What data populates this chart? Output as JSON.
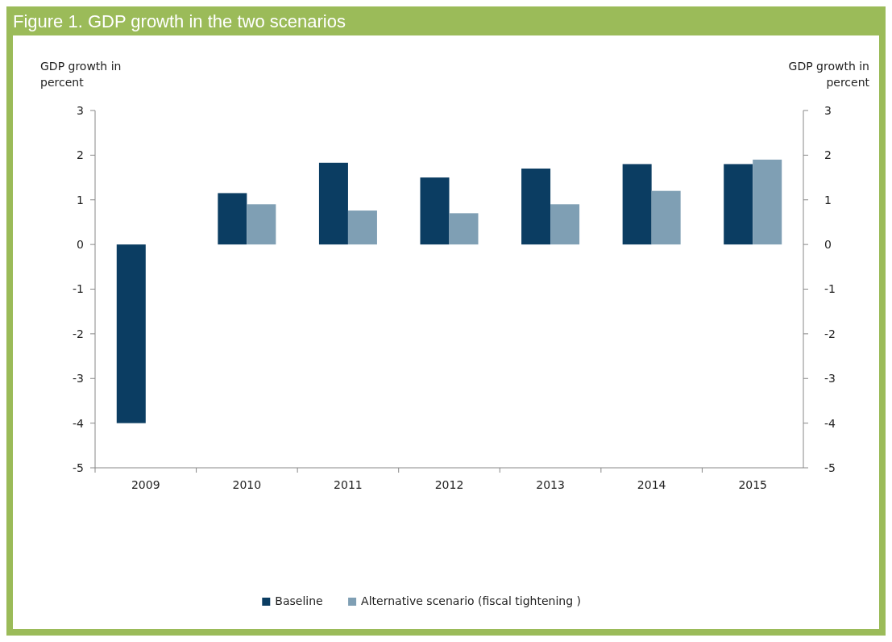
{
  "chart_data": {
    "type": "bar",
    "title": "Figure 1. GDP growth in the two scenarios",
    "ylabel": "GDP growth in percent",
    "y2label": "GDP growth in percent",
    "categories": [
      "2009",
      "2010",
      "2011",
      "2012",
      "2013",
      "2014",
      "2015"
    ],
    "series": [
      {
        "name": "Baseline",
        "color": "#0b3d62",
        "values": [
          -4,
          1.15,
          1.83,
          1.5,
          1.7,
          1.8,
          1.8
        ]
      },
      {
        "name": "Alternative scenario (fiscal tightening )",
        "color": "#7f9fb4",
        "values": [
          null,
          0.9,
          0.76,
          0.7,
          0.9,
          1.2,
          1.9
        ]
      }
    ],
    "ylim": [
      -5,
      3
    ],
    "yticks": [
      -5,
      -4,
      -3,
      -2,
      -1,
      0,
      1,
      2,
      3
    ],
    "y2lim": [
      -5,
      3
    ],
    "y2ticks": [
      -5,
      -4,
      -3,
      -2,
      -1,
      0,
      1,
      2,
      3
    ],
    "grid": false,
    "legend": "bottom"
  }
}
